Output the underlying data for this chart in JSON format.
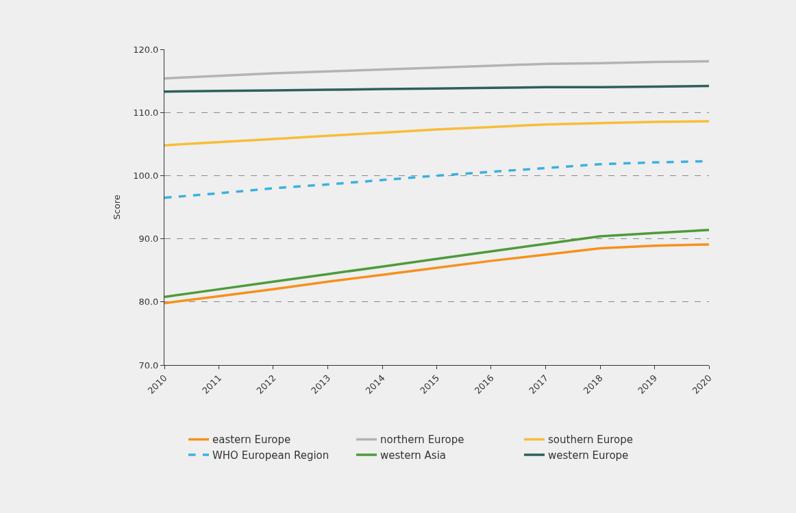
{
  "chart_data": {
    "type": "line",
    "ylabel": "Score",
    "x": [
      "2010",
      "2011",
      "2012",
      "2013",
      "2014",
      "2015",
      "2016",
      "2017",
      "2018",
      "2019",
      "2020"
    ],
    "xticks": [
      {
        "value": "2010",
        "label": "2010"
      },
      {
        "value": "2011",
        "label": "2011"
      },
      {
        "value": "2012",
        "label": "2012"
      },
      {
        "value": "2013",
        "label": "2013"
      },
      {
        "value": "2014",
        "label": "2014"
      },
      {
        "value": "2015",
        "label": "2015"
      },
      {
        "value": "2016",
        "label": "2016"
      },
      {
        "value": "2017",
        "label": "2017"
      },
      {
        "value": "2018",
        "label": "2018"
      },
      {
        "value": "2019",
        "label": "2019"
      },
      {
        "value": "2020",
        "label": "2020"
      }
    ],
    "xlim": [
      "2010",
      "2020"
    ],
    "ylim": [
      70,
      120
    ],
    "yticks": [
      {
        "value": 70,
        "label": "70.0"
      },
      {
        "value": 80,
        "label": "80.0"
      },
      {
        "value": 90,
        "label": "90.0"
      },
      {
        "value": 100,
        "label": "100.0"
      },
      {
        "value": 110,
        "label": "110.0"
      },
      {
        "value": 120,
        "label": "120.0"
      }
    ],
    "grid": "y",
    "legend": "bottom",
    "marker": "none",
    "series": [
      {
        "name": "eastern Europe",
        "color": "#f7901e",
        "values": [
          79.8,
          80.9,
          82.0,
          83.2,
          84.3,
          85.4,
          86.5,
          87.5,
          88.5,
          88.9,
          89.1
        ]
      },
      {
        "name": "northern Europe",
        "color": "#b3b3b3",
        "values": [
          115.4,
          115.8,
          116.2,
          116.5,
          116.8,
          117.1,
          117.4,
          117.7,
          117.8,
          118.0,
          118.1
        ]
      },
      {
        "name": "southern Europe",
        "color": "#f9bc39",
        "values": [
          104.8,
          105.3,
          105.8,
          106.3,
          106.8,
          107.3,
          107.7,
          108.1,
          108.3,
          108.5,
          108.6
        ]
      },
      {
        "name": "WHO European Region",
        "color": "#3bb0e0",
        "values": [
          96.5,
          97.2,
          98.0,
          98.6,
          99.3,
          100.0,
          100.6,
          101.2,
          101.8,
          102.1,
          102.3
        ],
        "line_style": "dashed"
      },
      {
        "name": "western Asia",
        "color": "#4e9a3a",
        "values": [
          80.8,
          82.0,
          83.2,
          84.4,
          85.6,
          86.8,
          88.0,
          89.2,
          90.4,
          90.9,
          91.4
        ]
      },
      {
        "name": "western Europe",
        "color": "#2f5f5e",
        "values": [
          113.3,
          113.4,
          113.5,
          113.6,
          113.7,
          113.8,
          113.9,
          114.0,
          114.0,
          114.1,
          114.2
        ]
      }
    ]
  }
}
